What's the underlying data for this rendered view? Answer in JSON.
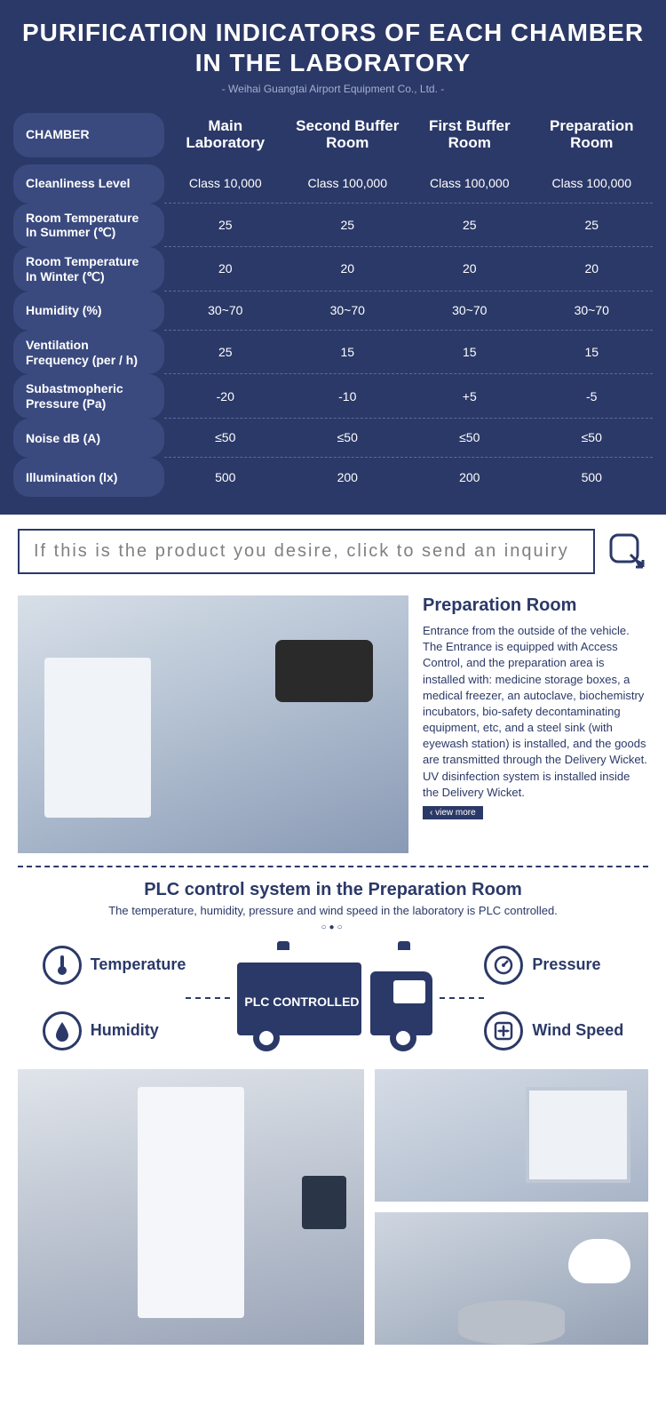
{
  "header": {
    "title": "PURIFICATION INDICATORS OF EACH CHAMBER IN THE LABORATORY",
    "subtitle": "- Weihai Guangtai Airport Equipment Co., Ltd. -"
  },
  "table": {
    "corner_label": "CHAMBER",
    "columns": [
      "Main Laboratory",
      "Second Buffer Room",
      "First Buffer Room",
      "Preparation Room"
    ],
    "rows": [
      {
        "label": "Cleanliness Level",
        "values": [
          "Class 10,000",
          "Class 100,000",
          "Class 100,000",
          "Class 100,000"
        ]
      },
      {
        "label": "Room Temperature In Summer (℃)",
        "values": [
          "25",
          "25",
          "25",
          "25"
        ]
      },
      {
        "label": "Room Temperature In Winter  (℃)",
        "values": [
          "20",
          "20",
          "20",
          "20"
        ]
      },
      {
        "label": "Humidity (%)",
        "values": [
          "30~70",
          "30~70",
          "30~70",
          "30~70"
        ]
      },
      {
        "label": "Ventilation Frequency (per / h)",
        "values": [
          "25",
          "15",
          "15",
          "15"
        ]
      },
      {
        "label": "Subastmopheric Pressure (Pa)",
        "values": [
          "-20",
          "-10",
          "+5",
          "-5"
        ]
      },
      {
        "label": "Noise dB (A)",
        "values": [
          "≤50",
          "≤50",
          "≤50",
          "≤50"
        ]
      },
      {
        "label": "Illumination (lx)",
        "values": [
          "500",
          "200",
          "200",
          "500"
        ]
      }
    ],
    "colors": {
      "bg": "#2b3968",
      "pill_bg": "#3a4a7f",
      "text": "#ffffff",
      "dash": "#5a6aa0"
    }
  },
  "inquiry": {
    "text": "If this is the product you desire, click to send an inquiry"
  },
  "prep": {
    "heading": "Preparation Room",
    "body": "Entrance from the outside of the vehicle. The Entrance is equipped with Access Control, and the preparation area is installed with: medicine storage boxes, a medical freezer, an autoclave, biochemistry incubators, bio-safety decontaminating equipment, etc, and a steel sink (with eyewash station) is installed, and the goods are transmitted through the Delivery Wicket.  UV disinfection system is installed inside the Delivery Wicket.",
    "view_more": "‹ view more"
  },
  "plc": {
    "title": "PLC control system in the Preparation Room",
    "subtitle": "The temperature, humidity, pressure and wind speed in the laboratory is PLC controlled.",
    "truck_label": "PLC CONTROLLED",
    "items": {
      "tl": "Temperature",
      "bl": "Humidity",
      "tr": "Pressure",
      "br": "Wind Speed"
    },
    "accent": "#2b3968"
  }
}
